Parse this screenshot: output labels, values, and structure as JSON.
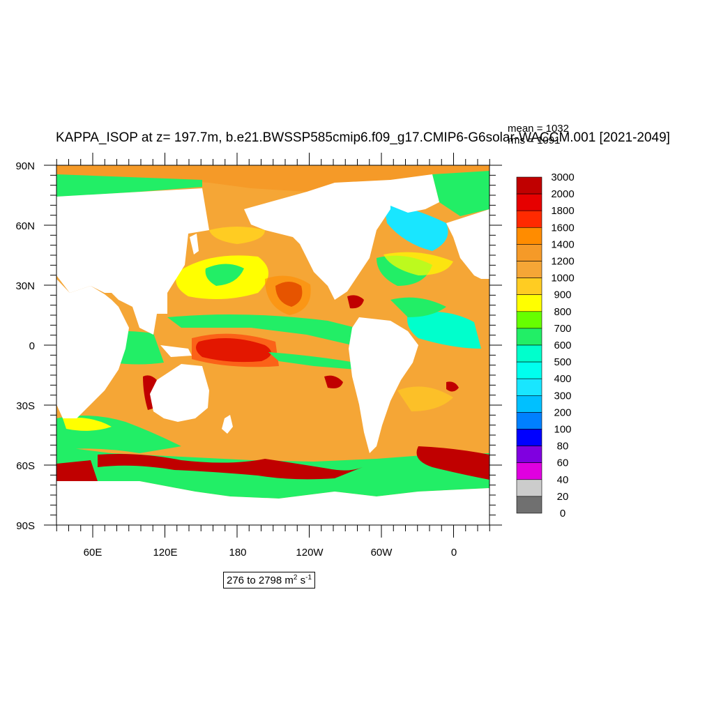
{
  "title": "KAPPA_ISOP at z= 197.7m, b.e21.BWSSP585cmip6.f09_g17.CMIP6-G6solar-WACCM.001 [2021-2049]",
  "stats": {
    "mean": "mean = 1032",
    "rms": "rms = 1091"
  },
  "range": {
    "text": "276 to 2798 m",
    "unit_sup1": "2",
    "unit_mid": " s",
    "unit_sup2": "-1"
  },
  "map": {
    "lat_ticks": [
      "90N",
      "60N",
      "30N",
      "0",
      "30S",
      "60S",
      "90S"
    ],
    "lon_ticks": [
      "60E",
      "120E",
      "180",
      "120W",
      "60W",
      "0"
    ],
    "land_color": "#ffffff",
    "ocean_background": "#f5a636"
  },
  "colorbar": {
    "labels": [
      "3000",
      "2000",
      "1800",
      "1600",
      "1400",
      "1200",
      "1000",
      "900",
      "800",
      "700",
      "600",
      "500",
      "400",
      "300",
      "200",
      "100",
      "80",
      "60",
      "40",
      "20",
      "0"
    ],
    "colors": [
      "#c00000",
      "#e60000",
      "#ff2a00",
      "#ff8c00",
      "#f59a28",
      "#f5a636",
      "#ffcc22",
      "#ffff00",
      "#66ff00",
      "#22ee66",
      "#00ffcc",
      "#00ffee",
      "#19e6ff",
      "#00c0ff",
      "#0080ff",
      "#0000ff",
      "#8000e0",
      "#e000e0",
      "#cccccc",
      "#707070"
    ]
  }
}
